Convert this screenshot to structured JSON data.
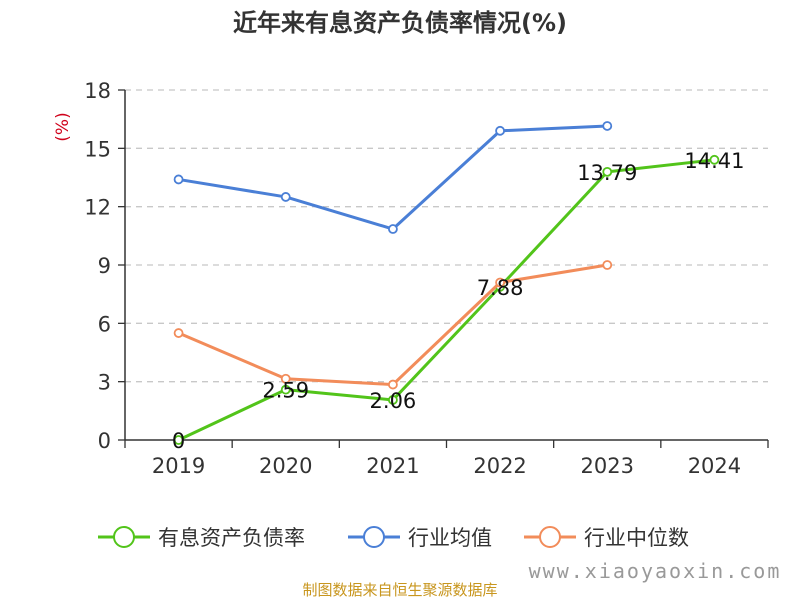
{
  "chart_data": {
    "type": "line",
    "title": "近年来有息资产负债率情况(%)",
    "unit_label": "(%)",
    "categories": [
      "2019",
      "2020",
      "2021",
      "2022",
      "2023",
      "2024"
    ],
    "ylim": [
      0,
      18
    ],
    "yticks": [
      0,
      3,
      6,
      9,
      12,
      15,
      18
    ],
    "grid": true,
    "legend_position": "bottom",
    "series": [
      {
        "name": "有息资产负债率",
        "color": "#52c41a",
        "values": [
          0,
          2.59,
          2.06,
          7.88,
          13.79,
          14.41
        ],
        "labels": [
          "0",
          "2.59",
          "2.06",
          "7.88",
          "13.79",
          "14.41"
        ]
      },
      {
        "name": "行业均值",
        "color": "#4a7fd6",
        "values": [
          13.4,
          12.5,
          10.85,
          15.9,
          16.15,
          null
        ]
      },
      {
        "name": "行业中位数",
        "color": "#f28c5a",
        "values": [
          5.5,
          3.15,
          2.85,
          8.1,
          9.0,
          null
        ]
      }
    ]
  },
  "footer": {
    "source": "制图数据来自恒生聚源数据库",
    "watermark": "www.xiaoyaoxin.com"
  }
}
